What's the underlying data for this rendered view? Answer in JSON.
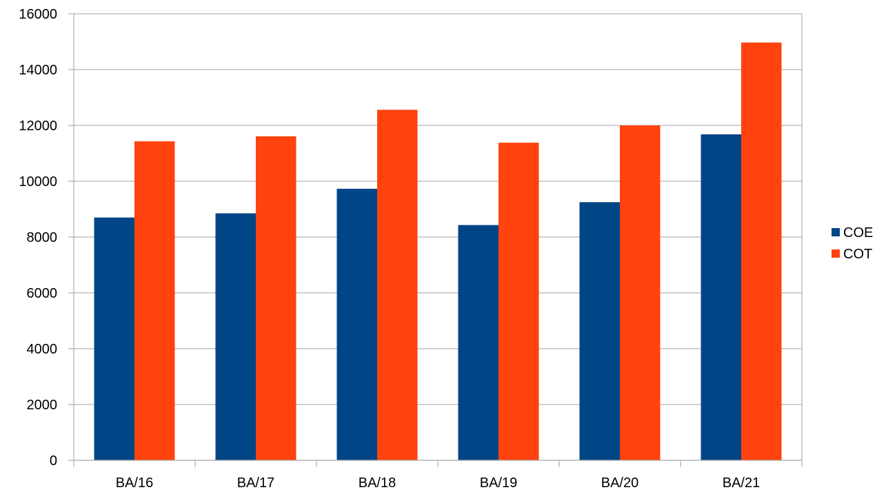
{
  "chart_data": {
    "type": "bar",
    "title": "",
    "xlabel": "",
    "ylabel": "",
    "categories": [
      "BA/16",
      "BA/17",
      "BA/18",
      "BA/19",
      "BA/20",
      "BA/21"
    ],
    "series": [
      {
        "name": "COE",
        "color": "#004586",
        "values": [
          8700,
          8850,
          9730,
          8430,
          9250,
          11680
        ]
      },
      {
        "name": "COT",
        "color": "#ff420e",
        "values": [
          11430,
          11610,
          12560,
          11380,
          12000,
          14970
        ]
      }
    ],
    "ylim": [
      0,
      16000
    ],
    "yticks": [
      0,
      2000,
      4000,
      6000,
      8000,
      10000,
      12000,
      14000,
      16000
    ],
    "grid": true,
    "legend_position": "right"
  }
}
